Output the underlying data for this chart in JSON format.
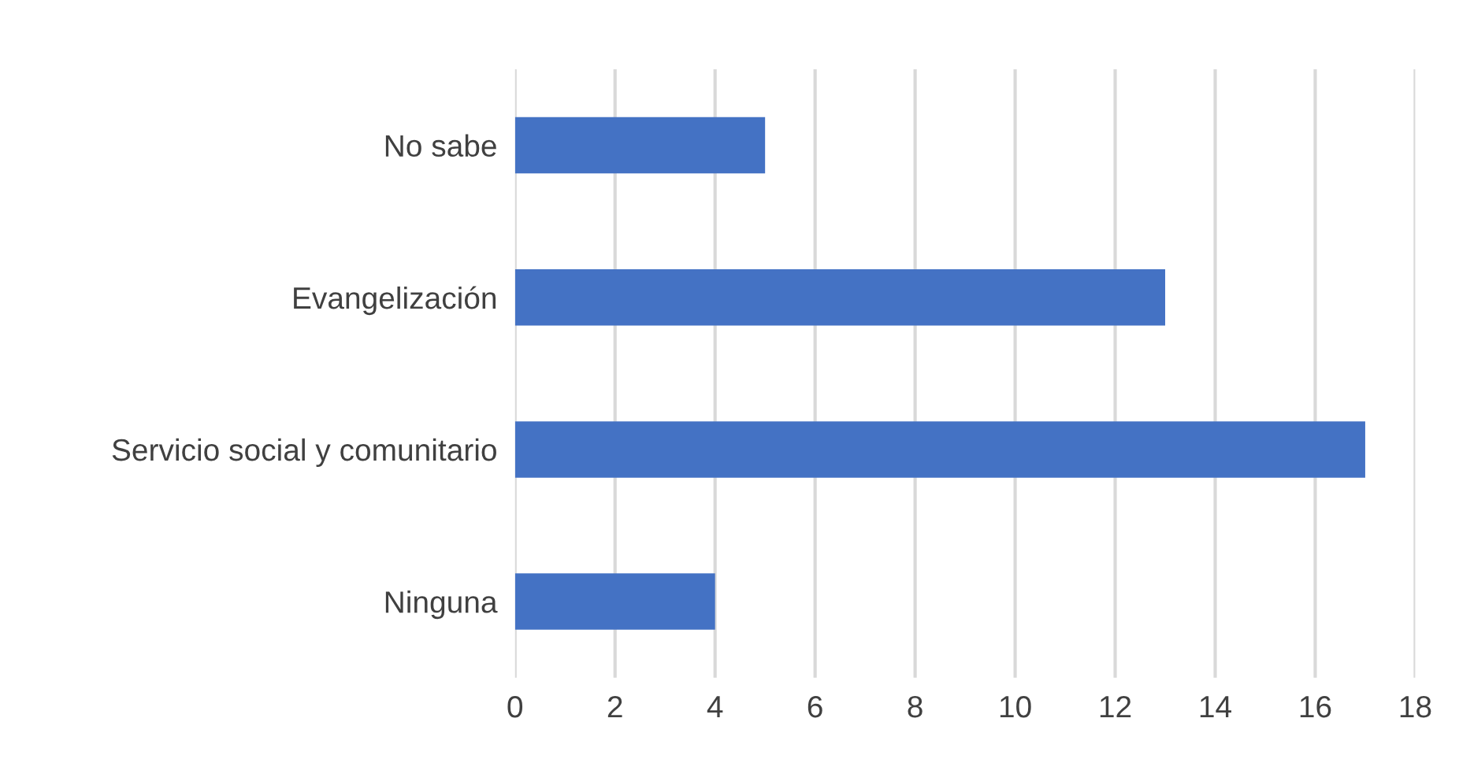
{
  "chart_data": {
    "type": "bar",
    "orientation": "horizontal",
    "categories": [
      "No sabe",
      "Evangelización",
      "Servicio social y comunitario",
      "Ninguna"
    ],
    "values": [
      5,
      13,
      17,
      4
    ],
    "color": "#4472c4",
    "xlim": [
      0,
      18
    ],
    "xticks": [
      0,
      2,
      4,
      6,
      8,
      10,
      12,
      14,
      16,
      18
    ],
    "grid": "x"
  }
}
